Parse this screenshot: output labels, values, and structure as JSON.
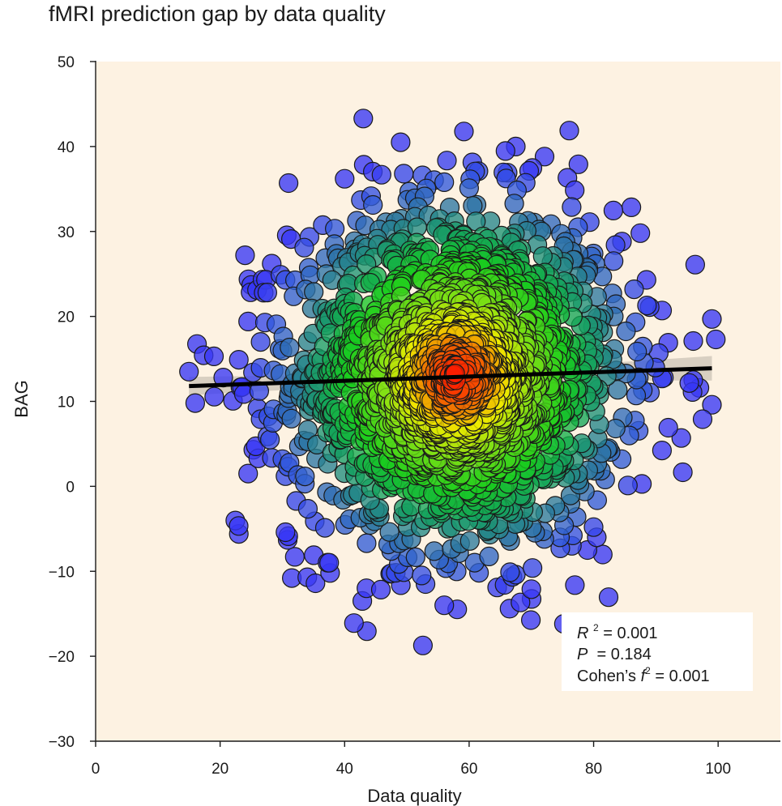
{
  "chart_data": {
    "type": "scatter",
    "title": "fMRI prediction gap by data quality",
    "xlabel": "Data quality",
    "ylabel": "BAG",
    "xlim": [
      0,
      110
    ],
    "ylim": [
      -30,
      50
    ],
    "x_ticks": [
      "0",
      "20",
      "40",
      "60",
      "80",
      "100"
    ],
    "y_ticks": [
      "50",
      "40",
      "30",
      "20",
      "10",
      "0",
      "−10",
      "−20",
      "−30"
    ],
    "grid": false,
    "background_color": "#fdf2e2",
    "colormap": "density: blue (outer) → teal → green → yellow → orange → red (center)",
    "point_count": 1800,
    "distribution": {
      "x_center": 58,
      "x_sd": 13,
      "y_center": 13,
      "y_sd": 10
    },
    "outer_points": [
      {
        "x": 43,
        "y": 43.3
      },
      {
        "x": 49,
        "y": 40.5
      },
      {
        "x": 67.5,
        "y": 40
      },
      {
        "x": 31,
        "y": 35.7
      },
      {
        "x": 40,
        "y": 36.2
      },
      {
        "x": 49.5,
        "y": 36.8
      },
      {
        "x": 52.5,
        "y": 36.6
      },
      {
        "x": 56,
        "y": 35.8
      },
      {
        "x": 61.5,
        "y": 37.1
      },
      {
        "x": 60,
        "y": 35.1
      },
      {
        "x": 24,
        "y": 27.2
      },
      {
        "x": 87.5,
        "y": 29.8
      },
      {
        "x": 25,
        "y": 23.7
      },
      {
        "x": 30.5,
        "y": 24.3
      },
      {
        "x": 27,
        "y": 22.8
      },
      {
        "x": 24.5,
        "y": 19.4
      },
      {
        "x": 26.5,
        "y": 17
      },
      {
        "x": 15,
        "y": 13.5
      },
      {
        "x": 19,
        "y": 15.3
      },
      {
        "x": 16,
        "y": 9.8
      },
      {
        "x": 20.5,
        "y": 12.8
      },
      {
        "x": 23,
        "y": 14.9
      },
      {
        "x": 23.5,
        "y": 11.7
      },
      {
        "x": 26,
        "y": 9.2
      },
      {
        "x": 26.5,
        "y": 7.9
      },
      {
        "x": 28,
        "y": 5.5
      },
      {
        "x": 30,
        "y": 3.2
      },
      {
        "x": 30.5,
        "y": 1.2
      },
      {
        "x": 24.5,
        "y": 1.5
      },
      {
        "x": 23,
        "y": -5.6
      },
      {
        "x": 30.5,
        "y": -5.4
      },
      {
        "x": 32,
        "y": -8.3
      },
      {
        "x": 34,
        "y": -10.7
      },
      {
        "x": 41.5,
        "y": -16.1
      },
      {
        "x": 43.5,
        "y": -12
      },
      {
        "x": 49.5,
        "y": -10.1
      },
      {
        "x": 53,
        "y": -11.5
      },
      {
        "x": 56,
        "y": -14
      },
      {
        "x": 58,
        "y": -10
      },
      {
        "x": 64.5,
        "y": -11.9
      },
      {
        "x": 66.5,
        "y": -14.4
      },
      {
        "x": 67.5,
        "y": -10.4
      },
      {
        "x": 70,
        "y": -12.1
      },
      {
        "x": 76.5,
        "y": -7
      },
      {
        "x": 79,
        "y": -7.5
      },
      {
        "x": 80.5,
        "y": -6
      },
      {
        "x": 80,
        "y": -4.8
      },
      {
        "x": 85.5,
        "y": 0.1
      },
      {
        "x": 84.5,
        "y": 3.2
      },
      {
        "x": 92,
        "y": 6.9
      },
      {
        "x": 97.5,
        "y": 7.9
      },
      {
        "x": 99,
        "y": 9.6
      },
      {
        "x": 91,
        "y": 12.7
      },
      {
        "x": 96,
        "y": 12.5
      },
      {
        "x": 92,
        "y": 16.9
      },
      {
        "x": 96,
        "y": 17.1
      },
      {
        "x": 99,
        "y": 19.7
      },
      {
        "x": 91,
        "y": 20.7
      },
      {
        "x": 89,
        "y": 21.1
      },
      {
        "x": 88.5,
        "y": 24.3
      },
      {
        "x": 86.5,
        "y": 23.2
      },
      {
        "x": 77.5,
        "y": 30.5
      },
      {
        "x": 80,
        "y": 27.4
      }
    ],
    "regression": {
      "x": [
        15,
        99
      ],
      "y": [
        11.8,
        13.9
      ],
      "ci_halfwidth": 0.9
    },
    "annotation": {
      "r2_label": "R",
      "r2_sup": "2",
      "r2_value": " = 0.001",
      "p_label": "P",
      "p_value": "  = 0.184",
      "f2_label": "Cohen’s ",
      "f2_italic": "f",
      "f2_sup": "2",
      "f2_value": " = 0.001"
    }
  }
}
